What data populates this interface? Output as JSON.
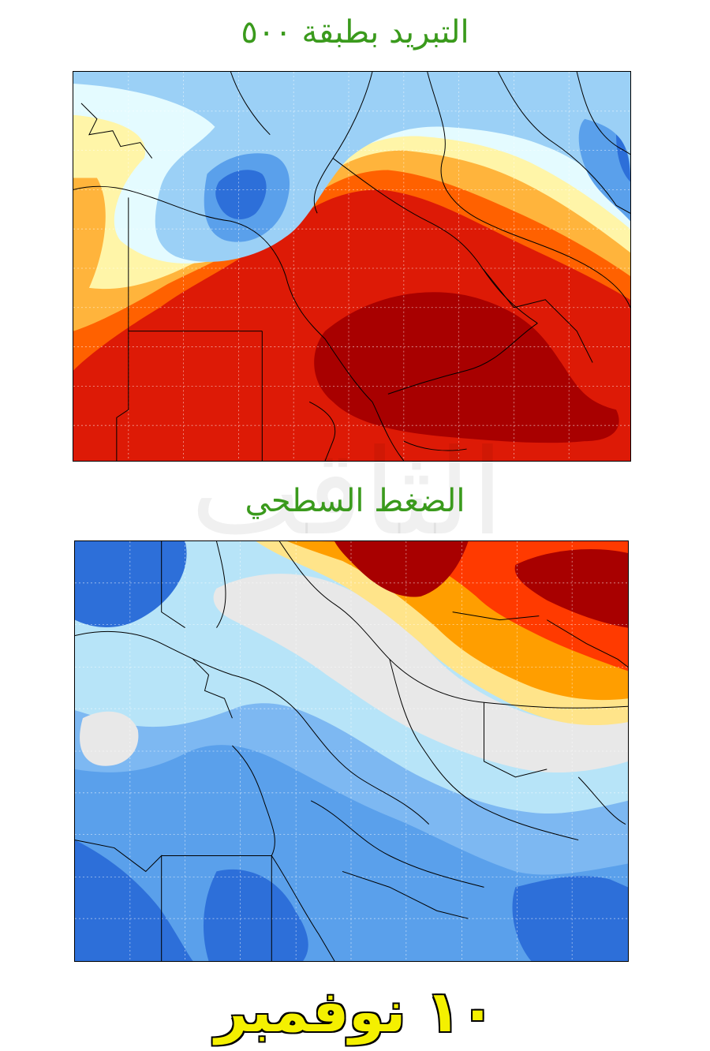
{
  "titles": {
    "upper_map": "التبريد بطبقة ٥٠٠",
    "lower_map": "الضغط السطحي"
  },
  "date": "١٠ نوفمبر",
  "watermark": "الثاقب",
  "colors": {
    "title_green": "#3a9a1c",
    "date_yellow": "#f4f000",
    "dark_red": "#a80000",
    "red": "#dd1a06",
    "orange_red": "#ff6100",
    "orange": "#ffb43c",
    "light_yellow": "#fff5a8",
    "pale_cyan": "#e4fbff",
    "light_blue": "#9bd0f6",
    "mid_blue": "#5aa0eb",
    "deep_blue": "#2d6fd9",
    "gray": "#e8e8e8",
    "surface_orange": "#ff9e00",
    "surface_red": "#ff3a00"
  }
}
